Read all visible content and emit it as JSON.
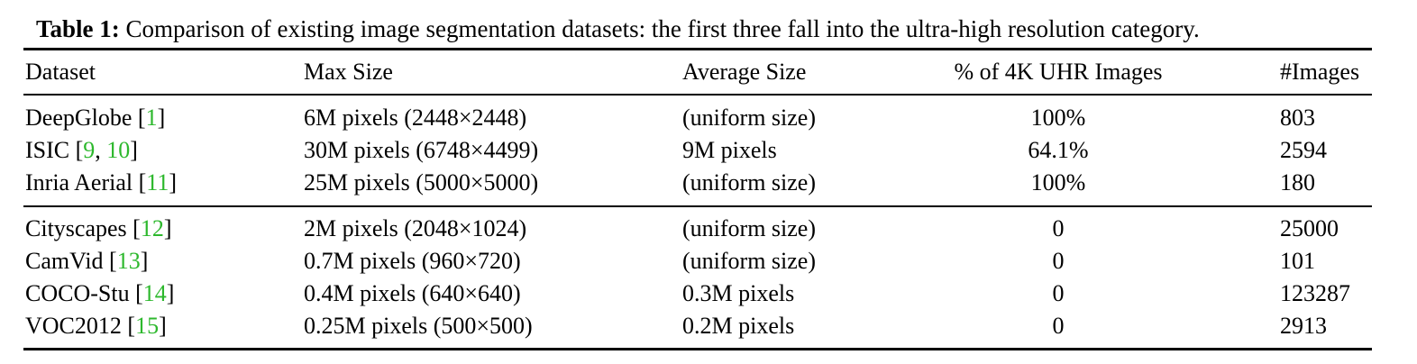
{
  "caption": {
    "label": "Table 1:",
    "text": " Comparison of existing image segmentation datasets: the first three fall into the ultra-high resolution category."
  },
  "headers": {
    "dataset": "Dataset",
    "max_size": "Max Size",
    "average_size": "Average Size",
    "pct_4k": "% of 4K UHR Images",
    "num_images": "#Images"
  },
  "rows": [
    {
      "name": "DeepGlobe",
      "refs": [
        "1"
      ],
      "max_size": "6M pixels (2448×2448)",
      "average_size": "(uniform size)",
      "pct_4k": "100%",
      "num_images": "803"
    },
    {
      "name": "ISIC",
      "refs": [
        "9",
        "10"
      ],
      "max_size": "30M pixels (6748×4499)",
      "average_size": "9M pixels",
      "pct_4k": "64.1%",
      "num_images": "2594"
    },
    {
      "name": "Inria Aerial",
      "refs": [
        "11"
      ],
      "max_size": "25M pixels (5000×5000)",
      "average_size": "(uniform size)",
      "pct_4k": "100%",
      "num_images": "180"
    },
    {
      "name": "Cityscapes",
      "refs": [
        "12"
      ],
      "max_size": "2M pixels (2048×1024)",
      "average_size": "(uniform size)",
      "pct_4k": "0",
      "num_images": "25000"
    },
    {
      "name": "CamVid",
      "refs": [
        "13"
      ],
      "max_size": "0.7M pixels (960×720)",
      "average_size": "(uniform size)",
      "pct_4k": "0",
      "num_images": "101"
    },
    {
      "name": "COCO-Stu",
      "refs": [
        "14"
      ],
      "max_size": "0.4M pixels (640×640)",
      "average_size": "0.3M pixels",
      "pct_4k": "0",
      "num_images": "123287"
    },
    {
      "name": "VOC2012",
      "refs": [
        "15"
      ],
      "max_size": "0.25M pixels (500×500)",
      "average_size": "0.2M pixels",
      "pct_4k": "0",
      "num_images": "2913"
    }
  ],
  "colors": {
    "citation": "#2db82d",
    "text": "#000000"
  }
}
